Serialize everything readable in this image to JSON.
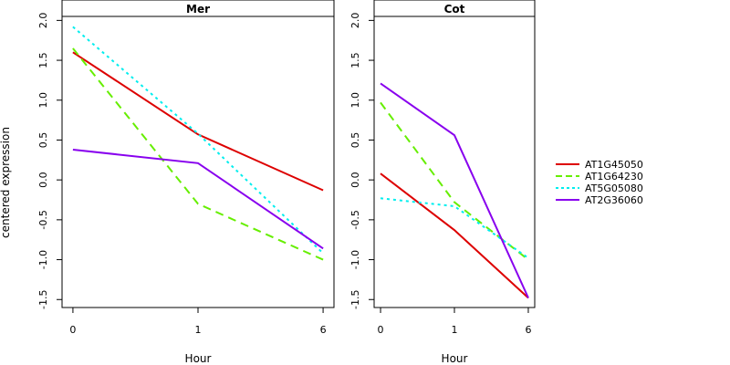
{
  "chart_data": {
    "type": "line",
    "y_axis_title": "centered expression",
    "x_axis_title": "Hour",
    "x_categories": [
      "0",
      "1",
      "6"
    ],
    "ylim": [
      -1.6,
      2.05
    ],
    "y_ticks": [
      -1.5,
      -1.0,
      -0.5,
      0.0,
      0.5,
      1.0,
      1.5,
      2.0
    ],
    "y_tick_labels": [
      "-1.5",
      "-1.0",
      "-0.5",
      "0.0",
      "0.5",
      "1.0",
      "1.5",
      "2.0"
    ],
    "legend_position": "right",
    "series_style": [
      {
        "name": "AT1G45050",
        "color": "#dd0000",
        "dash": "solid"
      },
      {
        "name": "AT1G64230",
        "color": "#66ee00",
        "dash": "dashed"
      },
      {
        "name": "AT5G05080",
        "color": "#00eeee",
        "dash": "dotted"
      },
      {
        "name": "AT2G36060",
        "color": "#8800ee",
        "dash": "solid"
      }
    ],
    "panels": [
      {
        "title": "Mer",
        "series": [
          {
            "name": "AT1G45050",
            "values": [
              1.6,
              0.57,
              -0.13
            ]
          },
          {
            "name": "AT1G64230",
            "values": [
              1.65,
              -0.3,
              -1.0
            ]
          },
          {
            "name": "AT5G05080",
            "values": [
              1.92,
              0.58,
              -0.92
            ]
          },
          {
            "name": "AT2G36060",
            "values": [
              0.38,
              0.21,
              -0.86
            ]
          }
        ]
      },
      {
        "title": "Cot",
        "series": [
          {
            "name": "AT1G45050",
            "values": [
              0.08,
              -0.63,
              -1.48
            ]
          },
          {
            "name": "AT1G64230",
            "values": [
              0.97,
              -0.28,
              -1.0
            ]
          },
          {
            "name": "AT5G05080",
            "values": [
              -0.23,
              -0.33,
              -0.98
            ]
          },
          {
            "name": "AT2G36060",
            "values": [
              1.21,
              0.56,
              -1.48
            ]
          }
        ]
      }
    ]
  }
}
